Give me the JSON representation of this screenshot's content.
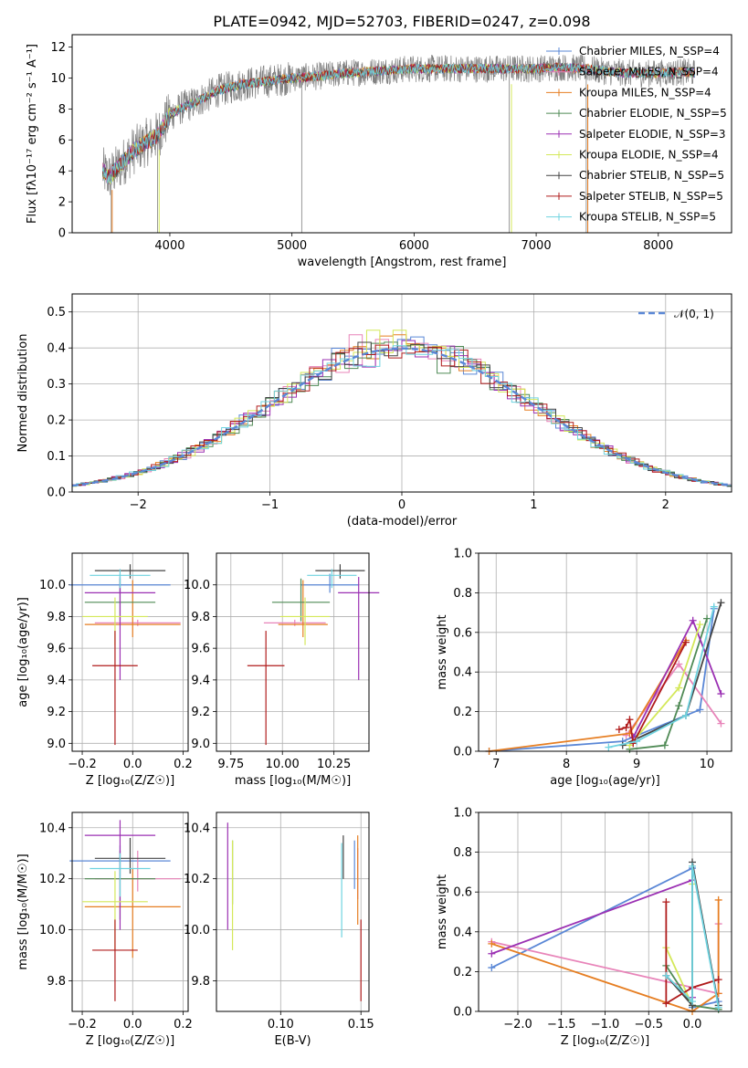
{
  "figure": {
    "title": "PLATE=0942, MJD=52703, FIBERID=0247, z=0.098"
  },
  "chart_data": [
    {
      "id": "spectrum",
      "type": "line",
      "xlabel": "wavelength [Angstrom, rest frame]",
      "ylabel": "Flux [fλ10⁻¹⁷ erg cm⁻² s⁻¹ A⁻¹]",
      "xlim": [
        3200,
        8600
      ],
      "ylim": [
        0,
        12.8
      ],
      "xticks": [
        4000,
        5000,
        6000,
        7000,
        8000
      ],
      "yticks": [
        0,
        2,
        4,
        6,
        8,
        10,
        12
      ],
      "grid": false,
      "legend_position": "right",
      "data_curve": {
        "x": [
          3450,
          3500,
          3600,
          3700,
          3800,
          3900,
          4000,
          4100,
          4200,
          4400,
          4600,
          4800,
          5000,
          5200,
          5400,
          5600,
          5800,
          6000,
          6200,
          6400,
          6600,
          6800,
          7000,
          7200,
          7400,
          7600,
          7800,
          8000,
          8200,
          8300
        ],
        "y": [
          4.0,
          3.6,
          4.4,
          5.3,
          5.8,
          6.3,
          7.6,
          8.1,
          8.4,
          9.2,
          9.6,
          9.8,
          10.0,
          10.1,
          10.3,
          10.4,
          10.5,
          10.6,
          10.6,
          10.6,
          10.6,
          10.6,
          10.6,
          10.7,
          10.6,
          10.4,
          10.3,
          10.3,
          10.4,
          10.3
        ]
      },
      "series": [
        {
          "name": "Chabrier MILES, N_SSP=4",
          "color": "#5a87d6"
        },
        {
          "name": "Salpeter MILES, N_SSP=4",
          "color": "#e884b9"
        },
        {
          "name": "Kroupa MILES, N_SSP=4",
          "color": "#e67e22"
        },
        {
          "name": "Chabrier ELODIE, N_SSP=5",
          "color": "#4f8a55"
        },
        {
          "name": "Salpeter ELODIE, N_SSP=3",
          "color": "#9b30b3"
        },
        {
          "name": "Kroupa ELODIE, N_SSP=4",
          "color": "#d4e85a"
        },
        {
          "name": "Chabrier STELIB, N_SSP=5",
          "color": "#444444"
        },
        {
          "name": "Salpeter STELIB, N_SSP=5",
          "color": "#b01c1c"
        },
        {
          "name": "Kroupa STELIB, N_SSP=5",
          "color": "#6fd3e0"
        }
      ]
    },
    {
      "id": "residuals",
      "type": "histogram",
      "xlabel": "(data-model)/error",
      "ylabel": "Normed distribution",
      "xlim": [
        -2.5,
        2.5
      ],
      "ylim": [
        0,
        0.55
      ],
      "xticks": [
        -2,
        -1,
        0,
        1,
        2
      ],
      "yticks": [
        0.0,
        0.1,
        0.2,
        0.3,
        0.4,
        0.5
      ],
      "grid": true,
      "legend": "𝒩(0, 1)",
      "legend_position": "top-right",
      "normal_curve": {
        "mean": 0,
        "sigma": 1
      }
    },
    {
      "id": "age-vs-Z",
      "type": "errorbar",
      "xlabel": "Z [log₁₀(Z/Z☉)]",
      "ylabel": "age  [log₁₀(age/yr)]",
      "xlim": [
        -0.24,
        0.22
      ],
      "ylim": [
        8.95,
        10.2
      ],
      "xticks": [
        -0.2,
        0.0,
        0.2
      ],
      "yticks": [
        9.0,
        9.2,
        9.4,
        9.6,
        9.8,
        10.0
      ],
      "grid": true,
      "points": [
        {
          "x": -0.05,
          "y": 10.0,
          "xerr": 0.2,
          "yerr": [
            0.05,
            0.07
          ],
          "color": "#5a87d6"
        },
        {
          "x": 0.02,
          "y": 9.76,
          "xerr": 0.17,
          "yerr": [
            0.02,
            0.02
          ],
          "color": "#e884b9"
        },
        {
          "x": 0.0,
          "y": 9.75,
          "xerr": 0.19,
          "yerr": [
            0.08,
            0.28
          ],
          "color": "#e67e22"
        },
        {
          "x": -0.05,
          "y": 9.89,
          "xerr": 0.14,
          "yerr": [
            0.12,
            0.15
          ],
          "color": "#4f8a55"
        },
        {
          "x": -0.05,
          "y": 9.95,
          "xerr": 0.14,
          "yerr": [
            0.55,
            0.1
          ],
          "color": "#9b30b3"
        },
        {
          "x": -0.07,
          "y": 9.8,
          "xerr": 0.13,
          "yerr": [
            0.18,
            0.12
          ],
          "color": "#d4e85a"
        },
        {
          "x": -0.01,
          "y": 10.09,
          "xerr": 0.14,
          "yerr": [
            0.05,
            0.04
          ],
          "color": "#444444"
        },
        {
          "x": -0.07,
          "y": 9.49,
          "xerr": 0.09,
          "yerr": [
            0.5,
            0.22
          ],
          "color": "#b01c1c"
        },
        {
          "x": -0.05,
          "y": 10.06,
          "xerr": 0.12,
          "yerr": [
            0.08,
            0.04
          ],
          "color": "#6fd3e0"
        }
      ]
    },
    {
      "id": "age-vs-mass",
      "type": "errorbar",
      "xlabel": "mass [log₁₀(M/M☉)]",
      "ylabel": "",
      "xlim": [
        9.68,
        10.42
      ],
      "ylim": [
        8.95,
        10.2
      ],
      "xticks": [
        9.75,
        10.0,
        10.25
      ],
      "yticks": [
        9.0,
        9.2,
        9.4,
        9.6,
        9.8,
        10.0
      ],
      "grid": true,
      "points": [
        {
          "x": 10.23,
          "y": 10.0,
          "xerr": 0.14,
          "yerr": [
            0.05,
            0.07
          ],
          "color": "#5a87d6"
        },
        {
          "x": 10.06,
          "y": 9.76,
          "xerr": 0.15,
          "yerr": [
            0.02,
            0.02
          ],
          "color": "#e884b9"
        },
        {
          "x": 10.1,
          "y": 9.75,
          "xerr": 0.12,
          "yerr": [
            0.08,
            0.28
          ],
          "color": "#e67e22"
        },
        {
          "x": 10.09,
          "y": 9.89,
          "xerr": 0.14,
          "yerr": [
            0.12,
            0.15
          ],
          "color": "#4f8a55"
        },
        {
          "x": 10.37,
          "y": 9.95,
          "xerr": 0.1,
          "yerr": [
            0.55,
            0.1
          ],
          "color": "#9b30b3"
        },
        {
          "x": 10.11,
          "y": 9.8,
          "xerr": 0.12,
          "yerr": [
            0.18,
            0.12
          ],
          "color": "#d4e85a"
        },
        {
          "x": 10.28,
          "y": 10.09,
          "xerr": 0.12,
          "yerr": [
            0.05,
            0.04
          ],
          "color": "#444444"
        },
        {
          "x": 9.92,
          "y": 9.49,
          "xerr": 0.09,
          "yerr": [
            0.5,
            0.22
          ],
          "color": "#b01c1c"
        },
        {
          "x": 10.24,
          "y": 10.06,
          "xerr": 0.12,
          "yerr": [
            0.08,
            0.04
          ],
          "color": "#6fd3e0"
        }
      ]
    },
    {
      "id": "weight-vs-age",
      "type": "line",
      "xlabel": "age  [log₁₀(age/yr)]",
      "ylabel": "mass weight",
      "xlim": [
        6.75,
        10.35
      ],
      "ylim": [
        0,
        1
      ],
      "xticks": [
        7,
        8,
        9,
        10
      ],
      "yticks": [
        0.0,
        0.2,
        0.4,
        0.6,
        0.8,
        1.0
      ],
      "grid": true,
      "series": [
        {
          "color": "#5a87d6",
          "x": [
            6.9,
            8.8,
            9.9,
            10.1
          ],
          "y": [
            0.0,
            0.05,
            0.21,
            0.72
          ]
        },
        {
          "color": "#e884b9",
          "x": [
            8.85,
            9.6,
            10.2
          ],
          "y": [
            0.08,
            0.44,
            0.14
          ]
        },
        {
          "color": "#e67e22",
          "x": [
            6.9,
            8.9,
            9.7
          ],
          "y": [
            0.0,
            0.09,
            0.56
          ]
        },
        {
          "color": "#4f8a55",
          "x": [
            8.9,
            9.4,
            9.6,
            10.0
          ],
          "y": [
            0.01,
            0.03,
            0.23,
            0.67
          ]
        },
        {
          "color": "#9b30b3",
          "x": [
            8.95,
            9.8,
            10.2
          ],
          "y": [
            0.07,
            0.66,
            0.29
          ]
        },
        {
          "color": "#d4e85a",
          "x": [
            8.9,
            9.6,
            9.9
          ],
          "y": [
            0.03,
            0.32,
            0.64
          ]
        },
        {
          "color": "#444444",
          "x": [
            8.8,
            9.7,
            10.2
          ],
          "y": [
            0.03,
            0.18,
            0.75
          ]
        },
        {
          "color": "#b01c1c",
          "x": [
            8.75,
            8.85,
            8.9,
            8.95,
            9.7
          ],
          "y": [
            0.11,
            0.12,
            0.16,
            0.04,
            0.55
          ]
        },
        {
          "color": "#6fd3e0",
          "x": [
            8.6,
            9.0,
            9.7,
            10.1
          ],
          "y": [
            0.02,
            0.05,
            0.18,
            0.73
          ]
        }
      ]
    },
    {
      "id": "mass-vs-Z",
      "type": "errorbar",
      "xlabel": "Z [log₁₀(Z/Z☉)]",
      "ylabel": "mass [log₁₀(M/M☉)]",
      "xlim": [
        -0.24,
        0.22
      ],
      "ylim": [
        9.68,
        10.46
      ],
      "xticks": [
        -0.2,
        0.0,
        0.2
      ],
      "yticks": [
        9.8,
        10.0,
        10.2,
        10.4
      ],
      "grid": true,
      "points": [
        {
          "x": -0.05,
          "y": 10.27,
          "xerr": 0.2,
          "yerr": [
            0.06,
            0.06
          ],
          "color": "#5a87d6"
        },
        {
          "x": 0.02,
          "y": 10.2,
          "xerr": 0.17,
          "yerr": [
            0.05,
            0.11
          ],
          "color": "#e884b9"
        },
        {
          "x": 0.0,
          "y": 10.09,
          "xerr": 0.19,
          "yerr": [
            0.2,
            0.15
          ],
          "color": "#e67e22"
        },
        {
          "x": -0.05,
          "y": 10.2,
          "xerr": 0.14,
          "yerr": [
            0.16,
            0.11
          ],
          "color": "#4f8a55"
        },
        {
          "x": -0.05,
          "y": 10.37,
          "xerr": 0.14,
          "yerr": [
            0.37,
            0.06
          ],
          "color": "#9b30b3"
        },
        {
          "x": -0.07,
          "y": 10.11,
          "xerr": 0.13,
          "yerr": [
            0.19,
            0.12
          ],
          "color": "#d4e85a"
        },
        {
          "x": -0.01,
          "y": 10.28,
          "xerr": 0.14,
          "yerr": [
            0.06,
            0.08
          ],
          "color": "#444444"
        },
        {
          "x": -0.07,
          "y": 9.92,
          "xerr": 0.09,
          "yerr": [
            0.2,
            0.12
          ],
          "color": "#b01c1c"
        },
        {
          "x": -0.05,
          "y": 10.24,
          "xerr": 0.12,
          "yerr": [
            0.11,
            0.06
          ],
          "color": "#6fd3e0"
        }
      ]
    },
    {
      "id": "mass-vs-ebv",
      "type": "errorbar",
      "xlabel": "E(B-V)",
      "ylabel": "",
      "xlim": [
        0.06,
        0.155
      ],
      "ylim": [
        9.68,
        10.46
      ],
      "xticks": [
        0.1,
        0.15
      ],
      "yticks": [
        9.8,
        10.0,
        10.2,
        10.4
      ],
      "grid": true,
      "points": [
        {
          "x": 0.146,
          "y": 10.25,
          "xerr": 0,
          "yerr": [
            0.09,
            0.1
          ],
          "color": "#5a87d6"
        },
        {
          "x": 0.148,
          "y": 10.22,
          "xerr": 0,
          "yerr": [
            0.1,
            0.1
          ],
          "color": "#e884b9"
        },
        {
          "x": 0.148,
          "y": 10.17,
          "xerr": 0,
          "yerr": [
            0.15,
            0.2
          ],
          "color": "#e67e22"
        },
        {
          "x": 0.07,
          "y": 10.3,
          "xerr": 0,
          "yerr": [
            0.2,
            0.05
          ],
          "color": "#4f8a55"
        },
        {
          "x": 0.067,
          "y": 10.22,
          "xerr": 0,
          "yerr": [
            0.22,
            0.2
          ],
          "color": "#9b30b3"
        },
        {
          "x": 0.07,
          "y": 10.15,
          "xerr": 0,
          "yerr": [
            0.23,
            0.2
          ],
          "color": "#d4e85a"
        },
        {
          "x": 0.139,
          "y": 10.3,
          "xerr": 0,
          "yerr": [
            0.1,
            0.07
          ],
          "color": "#444444"
        },
        {
          "x": 0.15,
          "y": 9.88,
          "xerr": 0,
          "yerr": [
            0.16,
            0.16
          ],
          "color": "#b01c1c"
        },
        {
          "x": 0.138,
          "y": 10.17,
          "xerr": 0,
          "yerr": [
            0.2,
            0.17
          ],
          "color": "#6fd3e0"
        }
      ]
    },
    {
      "id": "weight-vs-Z",
      "type": "line",
      "xlabel": "Z [log₁₀(Z/Z☉)]",
      "ylabel": "mass weight",
      "xlim": [
        -2.45,
        0.45
      ],
      "ylim": [
        0,
        1
      ],
      "xticks": [
        -2.0,
        -1.5,
        -1.0,
        -0.5,
        0.0
      ],
      "yticks": [
        0.0,
        0.2,
        0.4,
        0.6,
        0.8,
        1.0
      ],
      "grid": true,
      "series": [
        {
          "color": "#5a87d6",
          "x": [
            -2.3,
            0.0,
            0.0,
            0.3
          ],
          "y": [
            0.22,
            0.72,
            0.02,
            0.05
          ]
        },
        {
          "color": "#e884b9",
          "x": [
            -2.3,
            0.3,
            0.3
          ],
          "y": [
            0.35,
            0.09,
            0.44
          ]
        },
        {
          "color": "#e67e22",
          "x": [
            -2.3,
            0.0,
            0.3,
            0.3
          ],
          "y": [
            0.34,
            0.0,
            0.09,
            0.56
          ]
        },
        {
          "color": "#4f8a55",
          "x": [
            -0.3,
            0.0,
            0.3
          ],
          "y": [
            0.23,
            0.03,
            0.01
          ]
        },
        {
          "color": "#9b30b3",
          "x": [
            -2.3,
            0.0,
            0.0
          ],
          "y": [
            0.29,
            0.66,
            0.07
          ]
        },
        {
          "color": "#d4e85a",
          "x": [
            -0.3,
            0.0,
            0.0
          ],
          "y": [
            0.32,
            0.03,
            0.64
          ]
        },
        {
          "color": "#444444",
          "x": [
            -0.3,
            0.0,
            0.0,
            0.3
          ],
          "y": [
            0.18,
            0.03,
            0.75,
            0.03
          ]
        },
        {
          "color": "#b01c1c",
          "x": [
            -0.3,
            -0.3,
            0.0,
            0.3
          ],
          "y": [
            0.55,
            0.04,
            0.12,
            0.16
          ]
        },
        {
          "color": "#6fd3e0",
          "x": [
            -0.3,
            0.0,
            0.0,
            0.3
          ],
          "y": [
            0.18,
            0.05,
            0.73,
            0.02
          ]
        }
      ]
    }
  ]
}
